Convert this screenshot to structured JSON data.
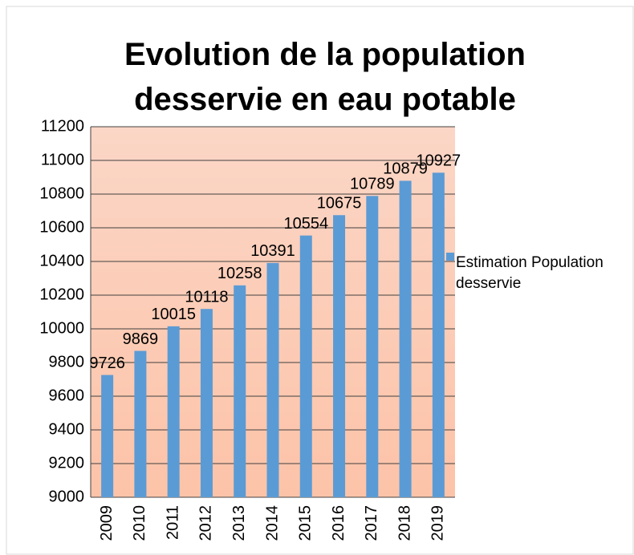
{
  "chart_data": {
    "type": "bar",
    "title": "Evolution de la population desservie en eau potable",
    "categories": [
      "2009",
      "2010",
      "2011",
      "2012",
      "2013",
      "2014",
      "2015",
      "2016",
      "2017",
      "2018",
      "2019"
    ],
    "series": [
      {
        "name": "Estimation Population desservie",
        "color": "#5b9bd5",
        "values": [
          9726,
          9869,
          10015,
          10118,
          10258,
          10391,
          10554,
          10675,
          10789,
          10879,
          10927
        ]
      }
    ],
    "ylim": [
      9000,
      11200
    ],
    "yticks": [
      9000,
      9200,
      9400,
      9600,
      9800,
      10000,
      10200,
      10400,
      10600,
      10800,
      11000,
      11200
    ],
    "grid": true,
    "legend": "right"
  }
}
